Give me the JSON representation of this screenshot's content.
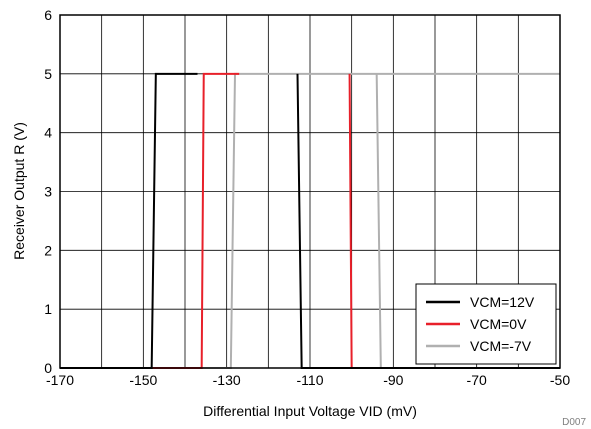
{
  "chart_data": {
    "type": "line",
    "title": "",
    "xlabel": "Differential Input Voltage VID (mV)",
    "ylabel": "Receiver Output R (V)",
    "xlim": [
      -170,
      -50
    ],
    "ylim": [
      0,
      6
    ],
    "xticks": [
      -170,
      -150,
      -130,
      -110,
      -90,
      -70,
      -50
    ],
    "yticks": [
      0,
      1,
      2,
      3,
      4,
      5,
      6
    ],
    "x_minor_step": 10,
    "grid": true,
    "legend_position": "bottom-right",
    "series": [
      {
        "name": "VCM=12V",
        "color": "#000000",
        "points": [
          [
            -170,
            0
          ],
          [
            -148,
            0
          ],
          [
            -147,
            5
          ],
          [
            -137,
            5
          ],
          [
            -137,
            5
          ],
          [
            -113,
            5
          ],
          [
            -112,
            0
          ],
          [
            -50,
            0
          ]
        ],
        "segments": [
          [
            [
              -170,
              0
            ],
            [
              -148,
              0
            ],
            [
              -147,
              5
            ],
            [
              -137,
              5
            ]
          ],
          [
            [
              -113,
              5
            ],
            [
              -112,
              0
            ],
            [
              -50,
              0
            ]
          ]
        ]
      },
      {
        "name": "VCM=0V",
        "color": "#e8202a",
        "segments": [
          [
            [
              -170,
              0
            ],
            [
              -136,
              0
            ],
            [
              -135.5,
              5
            ],
            [
              -127,
              5
            ]
          ],
          [
            [
              -100.5,
              5
            ],
            [
              -100,
              0
            ],
            [
              -50,
              0
            ]
          ]
        ]
      },
      {
        "name": "VCM=-7V",
        "color": "#b0b0b0",
        "segments": [
          [
            [
              -170,
              0
            ],
            [
              -129,
              0
            ],
            [
              -128,
              5
            ],
            [
              -50,
              5
            ]
          ],
          [
            [
              -94,
              5
            ],
            [
              -93,
              0
            ],
            [
              -50,
              0
            ]
          ]
        ]
      }
    ],
    "annotation": "D007"
  }
}
